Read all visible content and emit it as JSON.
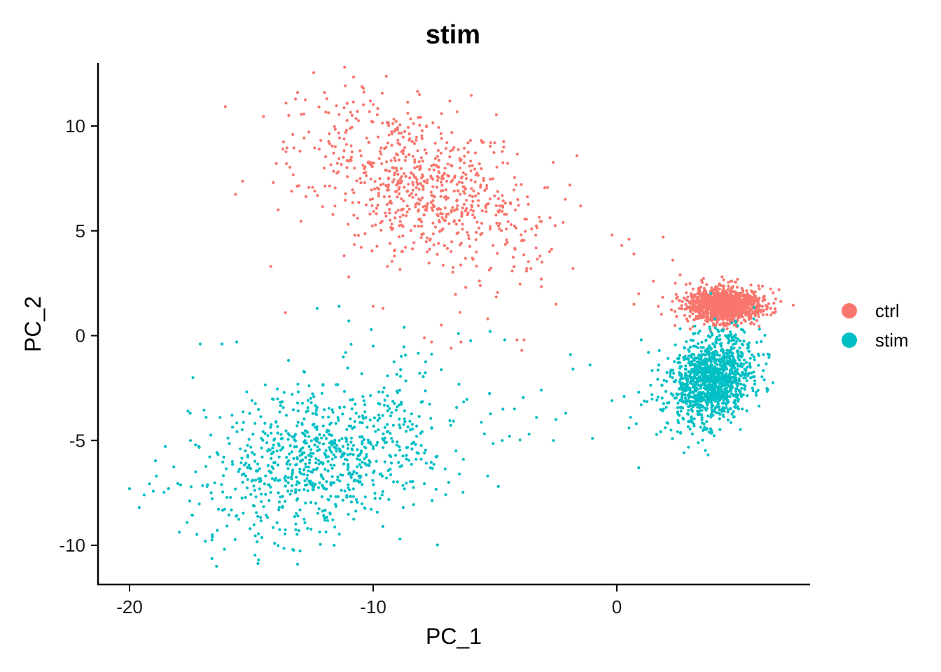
{
  "chart_data": {
    "type": "scatter",
    "title": "stim",
    "xlabel": "PC_1",
    "ylabel": "PC_2",
    "xlim": [
      -21.2,
      7.7
    ],
    "ylim": [
      -11.9,
      12.9
    ],
    "x_ticks": [
      -20,
      -10,
      0
    ],
    "x_tick_labels": [
      "-20",
      "-10",
      "0"
    ],
    "y_ticks": [
      -10,
      -5,
      0,
      5,
      10
    ],
    "y_tick_labels": [
      "-10",
      "-5",
      "0",
      "5",
      "10"
    ],
    "grid": false,
    "legend_position": "right",
    "legend_title": "",
    "series": [
      {
        "name": "ctrl",
        "color": "#F8766D",
        "clusters": [
          {
            "cx": -8.0,
            "cy": 7.2,
            "sx": 2.4,
            "sy": 2.0,
            "rho": -0.45,
            "n": 750
          },
          {
            "cx": 4.4,
            "cy": 1.45,
            "sx": 0.75,
            "sy": 0.42,
            "rho": 0.0,
            "n": 1300
          }
        ],
        "points": [
          [
            -13.1,
            11.6
          ],
          [
            -12.0,
            11.6
          ],
          [
            -10.4,
            11.8
          ],
          [
            -11.9,
            11.3
          ],
          [
            -13.3,
            9.6
          ],
          [
            -13.7,
            8.9
          ],
          [
            -14.1,
            7.3
          ],
          [
            -13.9,
            6.0
          ],
          [
            -14.2,
            3.3
          ],
          [
            -13.6,
            1.1
          ],
          [
            -11.0,
            2.8
          ],
          [
            -10.0,
            1.4
          ],
          [
            -9.6,
            1.3
          ],
          [
            -7.2,
            0.5
          ],
          [
            -6.4,
            -0.3
          ],
          [
            -6.8,
            -0.6
          ],
          [
            -7.9,
            -0.1
          ],
          [
            -7.6,
            -0.3
          ],
          [
            -4.1,
            -0.2
          ],
          [
            -3.9,
            -0.7
          ],
          [
            -2.2,
            5.4
          ],
          [
            -0.2,
            4.8
          ],
          [
            0.5,
            4.6
          ],
          [
            0.2,
            4.3
          ],
          [
            0.7,
            3.9
          ],
          [
            1.9,
            4.7
          ],
          [
            2.3,
            3.6
          ],
          [
            1.5,
            2.6
          ],
          [
            0.9,
            2.0
          ],
          [
            1.7,
            1.4
          ],
          [
            0.7,
            1.5
          ],
          [
            2.4,
            2.5
          ],
          [
            2.6,
            2.9
          ],
          [
            -3.1,
            2.7
          ],
          [
            -2.5,
            1.5
          ],
          [
            -5.3,
            0.8
          ],
          [
            -6.2,
            2.3
          ],
          [
            -1.8,
            3.2
          ],
          [
            6.4,
            1.1
          ],
          [
            6.0,
            1.0
          ]
        ]
      },
      {
        "name": "stim",
        "color": "#00BFC4",
        "clusters": [
          {
            "cx": -12.0,
            "cy": -5.6,
            "sx": 2.6,
            "sy": 1.9,
            "rho": 0.35,
            "n": 860
          },
          {
            "cx": 3.9,
            "cy": -2.1,
            "sx": 0.85,
            "sy": 1.05,
            "rho": 0.25,
            "n": 1250
          }
        ],
        "points": [
          [
            -20.0,
            -7.3
          ],
          [
            -19.6,
            -8.2
          ],
          [
            -19.4,
            -7.6
          ],
          [
            -18.9,
            -6.7
          ],
          [
            -18.4,
            -7.3
          ],
          [
            -17.6,
            -3.6
          ],
          [
            -17.5,
            -5.0
          ],
          [
            -17.4,
            -2.0
          ],
          [
            -17.1,
            -0.4
          ],
          [
            -16.2,
            -0.4
          ],
          [
            -16.6,
            -9.5
          ],
          [
            -16.6,
            -9.6
          ],
          [
            -15.6,
            -0.3
          ],
          [
            -14.7,
            -10.7
          ],
          [
            -13.1,
            -10.9
          ],
          [
            -13.3,
            -10.2
          ],
          [
            -11.6,
            -10.0
          ],
          [
            -11.4,
            1.4
          ],
          [
            -12.3,
            1.3
          ],
          [
            -11.0,
            0.7
          ],
          [
            -10.0,
            -0.5
          ],
          [
            -8.9,
            -9.7
          ],
          [
            -9.6,
            -9.1
          ],
          [
            -6.9,
            -7.0
          ],
          [
            -6.3,
            -5.9
          ],
          [
            -5.3,
            -6.7
          ],
          [
            -4.7,
            -5.0
          ],
          [
            -4.4,
            -4.8
          ],
          [
            -4.2,
            -3.5
          ],
          [
            -3.6,
            -4.7
          ],
          [
            -3.3,
            -3.9
          ],
          [
            -3.1,
            -2.6
          ],
          [
            -2.6,
            -5.0
          ],
          [
            -2.5,
            -4.0
          ],
          [
            -2.1,
            -3.7
          ],
          [
            -1.9,
            -0.9
          ],
          [
            -1.8,
            -1.6
          ],
          [
            -1.1,
            -1.4
          ],
          [
            -1.0,
            -4.9
          ],
          [
            -0.2,
            -3.1
          ],
          [
            0.3,
            -2.9
          ],
          [
            0.8,
            -4.2
          ],
          [
            0.9,
            -2.7
          ],
          [
            1.0,
            -3.3
          ],
          [
            0.9,
            -6.3
          ],
          [
            0.5,
            -4.4
          ],
          [
            1.0,
            -0.2
          ],
          [
            1.3,
            -0.8
          ],
          [
            -6.5,
            0.1
          ],
          [
            -4.6,
            -0.2
          ],
          [
            -5.2,
            0.2
          ]
        ]
      }
    ]
  }
}
